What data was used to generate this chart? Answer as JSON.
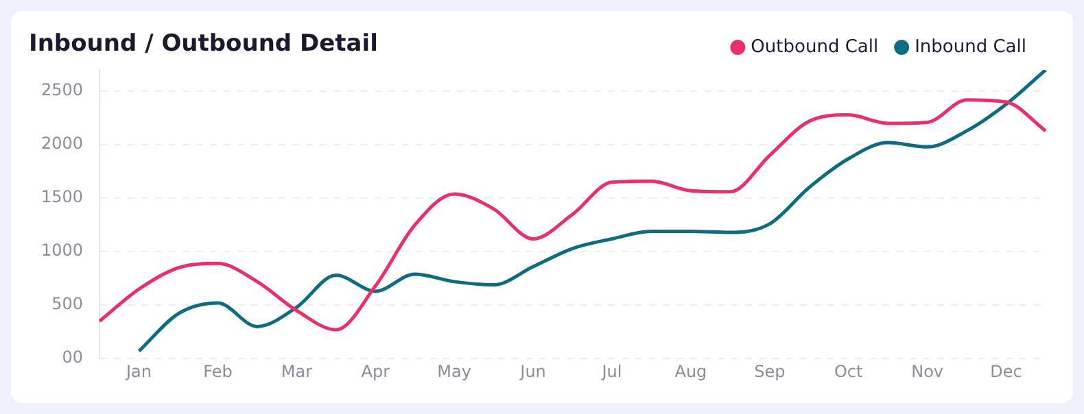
{
  "chart_data": {
    "type": "line",
    "title": "Inbound / Outbound Detail",
    "categories": [
      null,
      "Jan",
      null,
      "Feb",
      null,
      "Mar",
      null,
      "Apr",
      null,
      "May",
      null,
      "Jun",
      null,
      "Jul",
      null,
      "Aug",
      null,
      "Sep",
      null,
      "Oct",
      null,
      "Nov",
      null,
      "Dec",
      null
    ],
    "series": [
      {
        "name": "Outbound Call",
        "color": "#e8306a",
        "values": [
          350,
          650,
          850,
          890,
          720,
          450,
          270,
          680,
          1250,
          1540,
          1400,
          1120,
          1350,
          1650,
          1660,
          1570,
          1560,
          1900,
          2220,
          2280,
          2200,
          2210,
          2420,
          2400,
          2130
        ]
      },
      {
        "name": "Inbound Call",
        "color": "#0f6b80",
        "values": [
          null,
          70,
          420,
          520,
          300,
          480,
          780,
          630,
          790,
          720,
          690,
          860,
          1030,
          1120,
          1190,
          1190,
          1180,
          1260,
          1600,
          1870,
          2020,
          1980,
          2130,
          2380,
          2700
        ]
      }
    ],
    "ylim": [
      0,
      2700
    ],
    "yticks": [
      {
        "value": 0,
        "label": "00"
      },
      500,
      1000,
      1500,
      2000,
      2500
    ],
    "grid": "y",
    "legend": "top right",
    "line_style": "solid"
  }
}
